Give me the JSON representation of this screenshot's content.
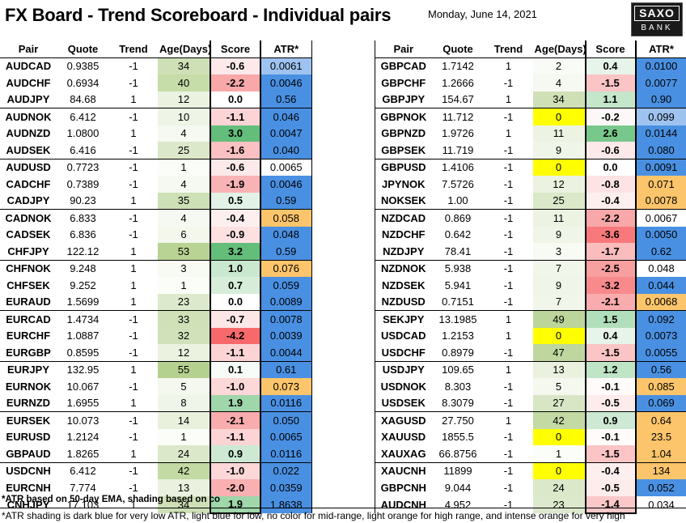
{
  "header": {
    "title": "FX Board - Trend Scoreboard - Individual pairs",
    "date": "Monday, June 14, 2021",
    "logo_line1": "SAXO",
    "logo_line2": "BANK"
  },
  "columns": [
    "Pair",
    "Quote",
    "Trend",
    "Age(Days)",
    "Score",
    "ATR*"
  ],
  "colors": {
    "score_scale": {
      "strong_neg": "#f8696b",
      "neg": "#fbb8b9",
      "light_neg": "#fde4e4",
      "zero": "#ffffff",
      "light_pos": "#e2f0d9",
      "pos": "#b5dba3",
      "strong_pos": "#63be7b"
    },
    "age_yellow": "#ffff00",
    "atr_dark_blue": "#4a90e2",
    "atr_light_blue": "#cfe2f3",
    "atr_light_orange": "#fcd59a",
    "atr_intense_orange": "#f9b25f"
  },
  "left_table": [
    {
      "pair": "AUDCAD",
      "quote": "0.9385",
      "trend": "-1",
      "age": "34",
      "score": "-0.6",
      "atr": "0.0061",
      "age_bg": "#cfe0b7",
      "score_bg": "#fde9e9",
      "atr_bg": "#9ec3f0"
    },
    {
      "pair": "AUDCHF",
      "quote": "0.6934",
      "trend": "-1",
      "age": "40",
      "score": "-2.2",
      "atr": "0.0046",
      "age_bg": "#c6dca9",
      "score_bg": "#f8a8a9",
      "atr_bg": "#4a90e2"
    },
    {
      "pair": "AUDJPY",
      "quote": "84.68",
      "trend": "1",
      "age": "12",
      "score": "0.0",
      "atr": "0.56",
      "age_bg": "#ebf2e0",
      "score_bg": "#ffffff",
      "atr_bg": "#4a90e2"
    },
    {
      "pair": "AUDNOK",
      "quote": "6.412",
      "trend": "-1",
      "age": "10",
      "score": "-1.1",
      "atr": "0.046",
      "age_bg": "#eef4e6",
      "score_bg": "#fcd4d5",
      "atr_bg": "#4a90e2"
    },
    {
      "pair": "AUDNZD",
      "quote": "1.0800",
      "trend": "1",
      "age": "4",
      "score": "3.0",
      "atr": "0.0047",
      "age_bg": "#f6f9f1",
      "score_bg": "#63be7b",
      "atr_bg": "#4a90e2"
    },
    {
      "pair": "AUDSEK",
      "quote": "6.416",
      "trend": "-1",
      "age": "25",
      "score": "-1.6",
      "atr": "0.040",
      "age_bg": "#dbe8c9",
      "score_bg": "#fbc0c1",
      "atr_bg": "#4a90e2"
    },
    {
      "pair": "AUDUSD",
      "quote": "0.7723",
      "trend": "-1",
      "age": "1",
      "score": "-0.6",
      "atr": "0.0065",
      "age_bg": "#fbfdf9",
      "score_bg": "#fde9e9",
      "atr_bg": "#ffffff"
    },
    {
      "pair": "CADCHF",
      "quote": "0.7389",
      "trend": "-1",
      "age": "4",
      "score": "-1.9",
      "atr": "0.0046",
      "age_bg": "#f6f9f1",
      "score_bg": "#f9b3b4",
      "atr_bg": "#4a90e2"
    },
    {
      "pair": "CADJPY",
      "quote": "90.23",
      "trend": "1",
      "age": "35",
      "score": "0.5",
      "atr": "0.59",
      "age_bg": "#cee0b5",
      "score_bg": "#e3f2e6",
      "atr_bg": "#4a90e2"
    },
    {
      "pair": "CADNOK",
      "quote": "6.833",
      "trend": "-1",
      "age": "4",
      "score": "-0.4",
      "atr": "0.058",
      "age_bg": "#f6f9f1",
      "score_bg": "#feefef",
      "atr_bg": "#fcc56b"
    },
    {
      "pair": "CADSEK",
      "quote": "6.836",
      "trend": "-1",
      "age": "6",
      "score": "-0.9",
      "atr": "0.048",
      "age_bg": "#f3f7ec",
      "score_bg": "#fde0e0",
      "atr_bg": "#4a90e2"
    },
    {
      "pair": "CHFJPY",
      "quote": "122.12",
      "trend": "1",
      "age": "53",
      "score": "3.2",
      "atr": "0.59",
      "age_bg": "#b8d393",
      "score_bg": "#63be7b",
      "atr_bg": "#4a90e2"
    },
    {
      "pair": "CHFNOK",
      "quote": "9.248",
      "trend": "1",
      "age": "3",
      "score": "1.0",
      "atr": "0.076",
      "age_bg": "#f8faf4",
      "score_bg": "#c9e8cf",
      "atr_bg": "#fcc56b"
    },
    {
      "pair": "CHFSEK",
      "quote": "9.252",
      "trend": "1",
      "age": "1",
      "score": "0.7",
      "atr": "0.059",
      "age_bg": "#fbfdf9",
      "score_bg": "#d7edda",
      "atr_bg": "#4a90e2"
    },
    {
      "pair": "EURAUD",
      "quote": "1.5699",
      "trend": "1",
      "age": "23",
      "score": "0.0",
      "atr": "0.0089",
      "age_bg": "#dde9cc",
      "score_bg": "#ffffff",
      "atr_bg": "#4a90e2"
    },
    {
      "pair": "EURCAD",
      "quote": "1.4734",
      "trend": "-1",
      "age": "33",
      "score": "-0.7",
      "atr": "0.0078",
      "age_bg": "#d0e1b8",
      "score_bg": "#fde6e6",
      "atr_bg": "#4a90e2"
    },
    {
      "pair": "EURCHF",
      "quote": "1.0887",
      "trend": "-1",
      "age": "32",
      "score": "-4.2",
      "atr": "0.0039",
      "age_bg": "#d1e2ba",
      "score_bg": "#f8696b",
      "atr_bg": "#4a90e2"
    },
    {
      "pair": "EURGBP",
      "quote": "0.8595",
      "trend": "-1",
      "age": "12",
      "score": "-1.1",
      "atr": "0.0044",
      "age_bg": "#ebf2e0",
      "score_bg": "#fcd4d5",
      "atr_bg": "#4a90e2"
    },
    {
      "pair": "EURJPY",
      "quote": "132.95",
      "trend": "1",
      "age": "55",
      "score": "0.1",
      "atr": "0.61",
      "age_bg": "#b5d190",
      "score_bg": "#f8fcf9",
      "atr_bg": "#4a90e2"
    },
    {
      "pair": "EURNOK",
      "quote": "10.067",
      "trend": "-1",
      "age": "5",
      "score": "-1.0",
      "atr": "0.073",
      "age_bg": "#f4f8ee",
      "score_bg": "#fcd8d8",
      "atr_bg": "#fcc56b"
    },
    {
      "pair": "EURNZD",
      "quote": "1.6955",
      "trend": "1",
      "age": "8",
      "score": "1.9",
      "atr": "0.0116",
      "age_bg": "#f0f5e9",
      "score_bg": "#9fd6aa",
      "atr_bg": "#4a90e2"
    },
    {
      "pair": "EURSEK",
      "quote": "10.073",
      "trend": "-1",
      "age": "14",
      "score": "-2.1",
      "atr": "0.050",
      "age_bg": "#e9f1dd",
      "score_bg": "#f9acad",
      "atr_bg": "#4a90e2"
    },
    {
      "pair": "EURUSD",
      "quote": "1.2124",
      "trend": "-1",
      "age": "1",
      "score": "-1.1",
      "atr": "0.0065",
      "age_bg": "#fbfdf9",
      "score_bg": "#fcd4d5",
      "atr_bg": "#4a90e2"
    },
    {
      "pair": "GBPAUD",
      "quote": "1.8265",
      "trend": "1",
      "age": "24",
      "score": "0.9",
      "atr": "0.0116",
      "age_bg": "#dce8ca",
      "score_bg": "#cde9d3",
      "atr_bg": "#4a90e2"
    },
    {
      "pair": "USDCNH",
      "quote": "6.412",
      "trend": "-1",
      "age": "42",
      "score": "-1.0",
      "atr": "0.022",
      "age_bg": "#c3daa5",
      "score_bg": "#fcd8d8",
      "atr_bg": "#4a90e2"
    },
    {
      "pair": "EURCNH",
      "quote": "7.774",
      "trend": "-1",
      "age": "13",
      "score": "-2.0",
      "atr": "0.0359",
      "age_bg": "#eaf1de",
      "score_bg": "#f9b0b1",
      "atr_bg": "#4a90e2"
    },
    {
      "pair": "CNHJPY",
      "quote": "17.103",
      "trend": "1",
      "age": "34",
      "score": "1.9",
      "atr": "1.8638",
      "age_bg": "#cfe0b7",
      "score_bg": "#9fd6aa",
      "atr_bg": "#4a90e2"
    }
  ],
  "right_table": [
    {
      "pair": "GBPCAD",
      "quote": "1.7142",
      "trend": "1",
      "age": "2",
      "score": "0.4",
      "atr": "0.0100",
      "age_bg": "#f9fbf6",
      "score_bg": "#e7f4ea",
      "atr_bg": "#4a90e2"
    },
    {
      "pair": "GBPCHF",
      "quote": "1.2666",
      "trend": "-1",
      "age": "4",
      "score": "-1.5",
      "atr": "0.0077",
      "age_bg": "#f6f9f1",
      "score_bg": "#fbc4c5",
      "atr_bg": "#4a90e2"
    },
    {
      "pair": "GBPJPY",
      "quote": "154.67",
      "trend": "1",
      "age": "34",
      "score": "1.1",
      "atr": "0.90",
      "age_bg": "#cfe0b7",
      "score_bg": "#c4e6cb",
      "atr_bg": "#4a90e2"
    },
    {
      "pair": "GBPNOK",
      "quote": "11.712",
      "trend": "-1",
      "age": "0",
      "score": "-0.2",
      "atr": "0.099",
      "age_bg": "#ffff00",
      "score_bg": "#fef7f7",
      "atr_bg": "#9ec3f0"
    },
    {
      "pair": "GBPNZD",
      "quote": "1.9726",
      "trend": "1",
      "age": "11",
      "score": "2.6",
      "atr": "0.0144",
      "age_bg": "#ecf3e3",
      "score_bg": "#78c78c",
      "atr_bg": "#4a90e2"
    },
    {
      "pair": "GBPSEK",
      "quote": "11.719",
      "trend": "-1",
      "age": "9",
      "score": "-0.6",
      "atr": "0.080",
      "age_bg": "#eff5e8",
      "score_bg": "#fde9e9",
      "atr_bg": "#4a90e2"
    },
    {
      "pair": "GBPUSD",
      "quote": "1.4106",
      "trend": "-1",
      "age": "0",
      "score": "0.0",
      "atr": "0.0091",
      "age_bg": "#ffff00",
      "score_bg": "#ffffff",
      "atr_bg": "#4a90e2"
    },
    {
      "pair": "JPYNOK",
      "quote": "7.5726",
      "trend": "-1",
      "age": "12",
      "score": "-0.8",
      "atr": "0.071",
      "age_bg": "#ebf2e0",
      "score_bg": "#fde3e3",
      "atr_bg": "#fcc56b"
    },
    {
      "pair": "NOKSEK",
      "quote": "1.00",
      "trend": "-1",
      "age": "25",
      "score": "-0.4",
      "atr": "0.0078",
      "age_bg": "#dbe8c9",
      "score_bg": "#feefef",
      "atr_bg": "#fcc56b"
    },
    {
      "pair": "NZDCAD",
      "quote": "0.869",
      "trend": "-1",
      "age": "11",
      "score": "-2.2",
      "atr": "0.0067",
      "age_bg": "#ecf3e3",
      "score_bg": "#f8a8a9",
      "atr_bg": "#ffffff"
    },
    {
      "pair": "NZDCHF",
      "quote": "0.642",
      "trend": "-1",
      "age": "9",
      "score": "-3.6",
      "atr": "0.0050",
      "age_bg": "#eff5e8",
      "score_bg": "#f8797b",
      "atr_bg": "#4a90e2"
    },
    {
      "pair": "NZDJPY",
      "quote": "78.41",
      "trend": "-1",
      "age": "3",
      "score": "-1.7",
      "atr": "0.62",
      "age_bg": "#f8faf4",
      "score_bg": "#fabcbd",
      "atr_bg": "#4a90e2"
    },
    {
      "pair": "NZDNOK",
      "quote": "5.938",
      "trend": "-1",
      "age": "7",
      "score": "-2.5",
      "atr": "0.048",
      "age_bg": "#f1f6ea",
      "score_bg": "#f89fa0",
      "atr_bg": "#ffffff"
    },
    {
      "pair": "NZDSEK",
      "quote": "5.941",
      "trend": "-1",
      "age": "9",
      "score": "-3.2",
      "atr": "0.044",
      "age_bg": "#eff5e8",
      "score_bg": "#f88a8c",
      "atr_bg": "#4a90e2"
    },
    {
      "pair": "NZDUSD",
      "quote": "0.7151",
      "trend": "-1",
      "age": "7",
      "score": "-2.1",
      "atr": "0.0068",
      "age_bg": "#f1f6ea",
      "score_bg": "#f9acad",
      "atr_bg": "#fcc56b"
    },
    {
      "pair": "SEKJPY",
      "quote": "13.1985",
      "trend": "1",
      "age": "49",
      "score": "1.5",
      "atr": "0.092",
      "age_bg": "#bcd59a",
      "score_bg": "#b2dfbb",
      "atr_bg": "#4a90e2"
    },
    {
      "pair": "USDCAD",
      "quote": "1.2153",
      "trend": "1",
      "age": "0",
      "score": "0.4",
      "atr": "0.0073",
      "age_bg": "#ffff00",
      "score_bg": "#e7f4ea",
      "atr_bg": "#4a90e2"
    },
    {
      "pair": "USDCHF",
      "quote": "0.8979",
      "trend": "-1",
      "age": "47",
      "score": "-1.5",
      "atr": "0.0055",
      "age_bg": "#bfd79e",
      "score_bg": "#fbc4c5",
      "atr_bg": "#4a90e2"
    },
    {
      "pair": "USDJPY",
      "quote": "109.65",
      "trend": "1",
      "age": "13",
      "score": "1.2",
      "atr": "0.56",
      "age_bg": "#eaf1de",
      "score_bg": "#bfe4c6",
      "atr_bg": "#4a90e2"
    },
    {
      "pair": "USDNOK",
      "quote": "8.303",
      "trend": "-1",
      "age": "5",
      "score": "-0.1",
      "atr": "0.085",
      "age_bg": "#f4f8ee",
      "score_bg": "#fffbfb",
      "atr_bg": "#fcc56b"
    },
    {
      "pair": "USDSEK",
      "quote": "8.3079",
      "trend": "-1",
      "age": "27",
      "score": "-0.5",
      "atr": "0.069",
      "age_bg": "#d8e6c5",
      "score_bg": "#feecec",
      "atr_bg": "#4a90e2"
    },
    {
      "pair": "XAGUSD",
      "quote": "27.750",
      "trend": "1",
      "age": "42",
      "score": "0.9",
      "atr": "0.64",
      "age_bg": "#c3daa5",
      "score_bg": "#cde9d3",
      "atr_bg": "#fcc56b"
    },
    {
      "pair": "XAUUSD",
      "quote": "1855.5",
      "trend": "-1",
      "age": "0",
      "score": "-0.1",
      "atr": "23.5",
      "age_bg": "#ffff00",
      "score_bg": "#fffbfb",
      "atr_bg": "#fcc56b"
    },
    {
      "pair": "XAUXAG",
      "quote": "66.8756",
      "trend": "-1",
      "age": "1",
      "score": "-1.5",
      "atr": "1.04",
      "age_bg": "#fbfdf9",
      "score_bg": "#fbc4c5",
      "atr_bg": "#fcc56b"
    },
    {
      "pair": "XAUCNH",
      "quote": "11899",
      "trend": "-1",
      "age": "0",
      "score": "-0.4",
      "atr": "134",
      "age_bg": "#ffff00",
      "score_bg": "#feefef",
      "atr_bg": "#fcc56b"
    },
    {
      "pair": "GBPCNH",
      "quote": "9.044",
      "trend": "-1",
      "age": "24",
      "score": "-0.5",
      "atr": "0.052",
      "age_bg": "#dce8ca",
      "score_bg": "#feecec",
      "atr_bg": "#4a90e2"
    },
    {
      "pair": "AUDCNH",
      "quote": "4.952",
      "trend": "-1",
      "age": "23",
      "score": "-1.4",
      "atr": "0.034",
      "age_bg": "#dde9cc",
      "score_bg": "#fbc8c9",
      "atr_bg": "#ffffff"
    }
  ],
  "footnotes": {
    "line1": "*ATR based on 50-day EMA, shading based on co",
    "line2": "*ATR shading is dark blue for very low ATR, light blue for low, no color for mid-range, light orange for high range, and intense orange for very high"
  }
}
